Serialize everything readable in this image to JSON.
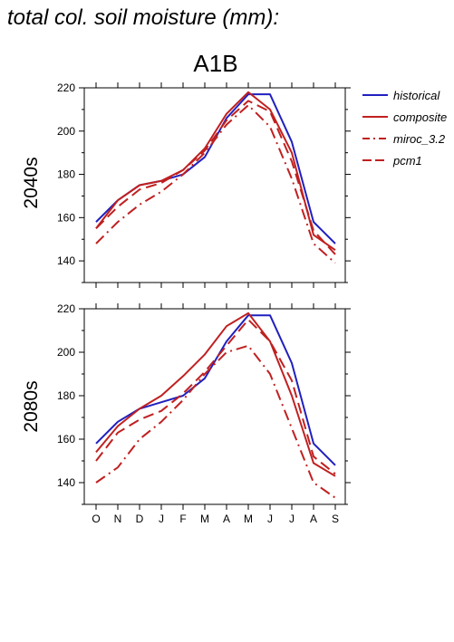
{
  "page_title": "total col. soil moisture (mm):",
  "chart_data": {
    "type": "line",
    "title": "A1B",
    "categories": [
      "O",
      "N",
      "D",
      "J",
      "F",
      "M",
      "A",
      "M",
      "J",
      "J",
      "A",
      "S"
    ],
    "ylim": [
      130,
      220
    ],
    "yticks": [
      140,
      160,
      180,
      200,
      220
    ],
    "grid": false,
    "legend_position": "right",
    "series_styles": [
      {
        "name": "historical",
        "color": "#2020c0",
        "dash": "solid"
      },
      {
        "name": "composite",
        "color": "#c02020",
        "dash": "solid"
      },
      {
        "name": "miroc_3.2",
        "color": "#c02020",
        "dash": "dashdot"
      },
      {
        "name": "pcm1",
        "color": "#c02020",
        "dash": "dash"
      }
    ],
    "panels": [
      {
        "label": "2040s",
        "series": [
          {
            "name": "historical",
            "values": [
              158,
              168,
              175,
              177,
              180,
              188,
              206,
              217,
              217,
              195,
              158,
              148
            ]
          },
          {
            "name": "composite",
            "values": [
              155,
              168,
              175,
              177,
              182,
              192,
              208,
              218,
              210,
              190,
              152,
              145
            ]
          },
          {
            "name": "miroc_3.2",
            "values": [
              148,
              158,
              166,
              172,
              180,
              190,
              203,
              212,
              202,
              178,
              148,
              139
            ]
          },
          {
            "name": "pcm1",
            "values": [
              155,
              165,
              173,
              176,
              182,
              191,
              205,
              214,
              209,
              186,
              154,
              143
            ]
          }
        ]
      },
      {
        "label": "2080s",
        "series": [
          {
            "name": "historical",
            "values": [
              158,
              168,
              174,
              177,
              180,
              188,
              205,
              217,
              217,
              195,
              158,
              148
            ]
          },
          {
            "name": "composite",
            "values": [
              154,
              166,
              174,
              180,
              189,
              199,
              212,
              218,
              205,
              180,
              149,
              143
            ]
          },
          {
            "name": "miroc_3.2",
            "values": [
              140,
              147,
              160,
              168,
              178,
              190,
              200,
              203,
              190,
              165,
              140,
              133
            ]
          },
          {
            "name": "pcm1",
            "values": [
              150,
              163,
              169,
              173,
              181,
              191,
              203,
              215,
              205,
              187,
              152,
              144
            ]
          }
        ]
      }
    ]
  }
}
